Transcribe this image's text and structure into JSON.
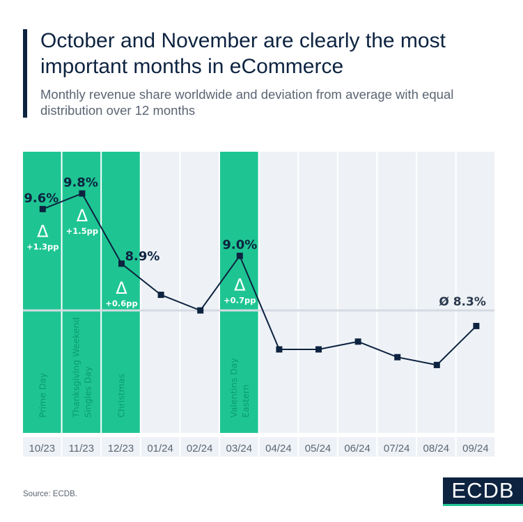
{
  "header": {
    "title": "October and November are clearly the most important months in eCommerce",
    "subtitle": "Monthly revenue share worldwide and deviation from average with equal distribution over 12 months"
  },
  "chart_data": {
    "type": "line",
    "categories": [
      "10/23",
      "11/23",
      "12/23",
      "01/24",
      "02/24",
      "03/24",
      "04/24",
      "05/24",
      "06/24",
      "07/24",
      "08/24",
      "09/24"
    ],
    "values": [
      9.6,
      9.8,
      8.9,
      8.5,
      8.3,
      9.0,
      7.8,
      7.8,
      7.9,
      7.7,
      7.6,
      8.1
    ],
    "unit": "%",
    "data_labels": [
      "9.6%",
      "9.8%",
      "8.9%",
      "",
      "",
      "9.0%",
      "",
      "",
      "",
      "",
      "",
      ""
    ],
    "deltas": [
      "+1.3pp",
      "+1.5pp",
      "+0.6pp",
      "",
      "",
      "+0.7pp",
      "",
      "",
      "",
      "",
      "",
      ""
    ],
    "delta_symbol": "Δ",
    "highlighted": [
      true,
      true,
      true,
      false,
      false,
      true,
      false,
      false,
      false,
      false,
      false,
      false
    ],
    "events": [
      [
        "Prime Day"
      ],
      [
        "Thanksgiving Weekend",
        "Singles Day"
      ],
      [
        "Christmas"
      ],
      [],
      [],
      [
        "Valentins Day",
        "Eastern"
      ],
      [],
      [],
      [],
      [],
      [],
      []
    ],
    "average": 8.3,
    "average_label": "Ø 8.3%",
    "colors": {
      "highlight": "#1ec592",
      "column": "#eef2f6",
      "line": "#0d2340",
      "event_text": "#0a9a70"
    }
  },
  "footer": {
    "source": "Source: ECDB.",
    "logo": "ECDB"
  }
}
